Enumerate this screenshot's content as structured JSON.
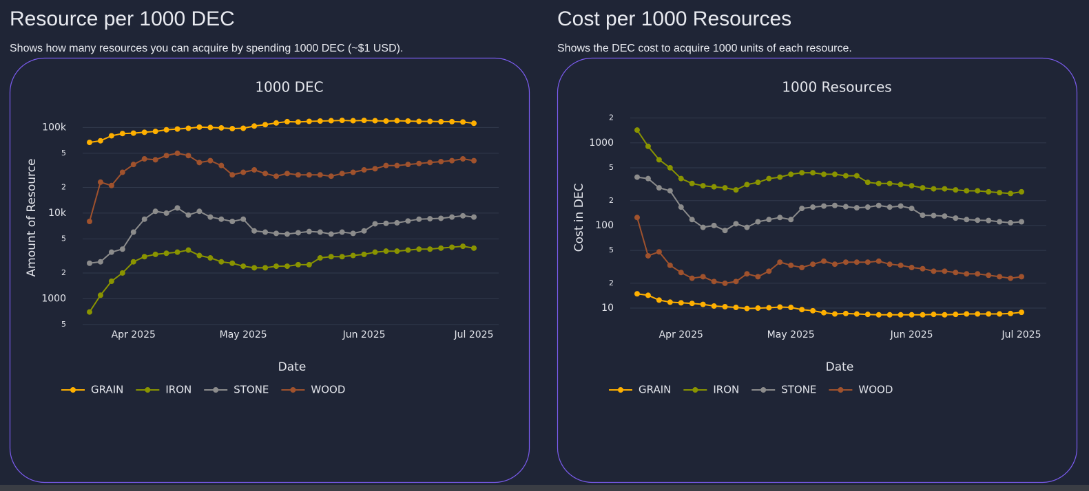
{
  "panels": [
    {
      "heading": "Resource per 1000 DEC",
      "description": "Shows how many resources you can acquire by spending 1000 DEC (~$1 USD)."
    },
    {
      "heading": "Cost per 1000 Resources",
      "description": "Shows the DEC cost to acquire 1000 units of each resource."
    }
  ],
  "chart_data": [
    {
      "type": "line",
      "title": "1000 DEC",
      "x_label": "Date",
      "y_label": "Amount of Resource",
      "log_y": true,
      "grid": true,
      "legend": "bottom-left",
      "categories": [
        null,
        null,
        null,
        null,
        "Apr 2025",
        null,
        null,
        null,
        null,
        null,
        null,
        null,
        null,
        null,
        "May 2025",
        null,
        null,
        null,
        null,
        null,
        null,
        null,
        null,
        null,
        null,
        "Jun 2025",
        null,
        null,
        null,
        null,
        null,
        null,
        null,
        null,
        null,
        "Jul 2025"
      ],
      "ylim": [
        490,
        160000
      ],
      "yticks": [
        {
          "value": 500,
          "label": "5"
        },
        1000,
        {
          "value": 2000,
          "label": "2"
        },
        {
          "value": 5000,
          "label": "5"
        },
        {
          "value": 10000,
          "label": "10k"
        },
        {
          "value": 20000,
          "label": "2"
        },
        {
          "value": 50000,
          "label": "5"
        },
        {
          "value": 100000,
          "label": "100k"
        }
      ],
      "series": [
        {
          "name": "GRAIN",
          "color": "#ffb000",
          "values": [
            67000,
            70000,
            80000,
            85000,
            86000,
            88000,
            90000,
            94000,
            96000,
            98000,
            101000,
            100000,
            99000,
            97000,
            98000,
            104000,
            108000,
            113000,
            117000,
            116000,
            118000,
            119000,
            120000,
            121000,
            120000,
            121000,
            120000,
            119000,
            120000,
            119000,
            118000,
            118000,
            117000,
            117000,
            116000,
            112000
          ]
        },
        {
          "name": "IRON",
          "color": "#8a9400",
          "values": [
            700,
            1100,
            1600,
            2000,
            2700,
            3100,
            3300,
            3400,
            3500,
            3700,
            3200,
            3000,
            2700,
            2600,
            2400,
            2300,
            2300,
            2400,
            2400,
            2500,
            2500,
            3000,
            3100,
            3100,
            3200,
            3300,
            3500,
            3600,
            3600,
            3700,
            3800,
            3800,
            3900,
            4000,
            4100,
            3900
          ]
        },
        {
          "name": "STONE",
          "color": "#8c8c8c",
          "values": [
            2600,
            2700,
            3500,
            3800,
            6000,
            8500,
            10500,
            10000,
            11500,
            9500,
            10500,
            9000,
            8500,
            8000,
            8500,
            6200,
            6000,
            5800,
            5700,
            5900,
            6100,
            6000,
            5700,
            6000,
            5800,
            6200,
            7500,
            7600,
            7700,
            8100,
            8500,
            8600,
            8700,
            9000,
            9300,
            9000
          ]
        },
        {
          "name": "WOOD",
          "color": "#a0522d",
          "values": [
            8000,
            23000,
            21000,
            30000,
            37000,
            43000,
            42000,
            47000,
            50000,
            47000,
            39000,
            41000,
            36000,
            28000,
            30000,
            32000,
            29000,
            27000,
            29000,
            28000,
            28000,
            28000,
            27000,
            29000,
            30000,
            32000,
            33000,
            36000,
            36000,
            37000,
            38000,
            39000,
            40000,
            41000,
            43000,
            41000
          ]
        }
      ]
    },
    {
      "type": "line",
      "title": "1000 Resources",
      "x_label": "Date",
      "y_label": "Cost in DEC",
      "log_y": true,
      "grid": true,
      "legend": "bottom-left",
      "categories": [
        null,
        null,
        null,
        null,
        "Apr 2025",
        null,
        null,
        null,
        null,
        null,
        null,
        null,
        null,
        null,
        "May 2025",
        null,
        null,
        null,
        null,
        null,
        null,
        null,
        null,
        null,
        null,
        "Jun 2025",
        null,
        null,
        null,
        null,
        null,
        null,
        null,
        null,
        null,
        "Jul 2025"
      ],
      "ylim": [
        6.2,
        2500
      ],
      "yticks": [
        10,
        {
          "value": 20,
          "label": "2"
        },
        {
          "value": 50,
          "label": "5"
        },
        100,
        {
          "value": 200,
          "label": "2"
        },
        {
          "value": 500,
          "label": "5"
        },
        1000,
        {
          "value": 2000,
          "label": "2"
        }
      ],
      "series": [
        {
          "name": "GRAIN",
          "color": "#ffb000",
          "values": [
            14.9,
            14.3,
            12.5,
            11.8,
            11.6,
            11.4,
            11.1,
            10.6,
            10.4,
            10.2,
            9.9,
            10,
            10.1,
            10.3,
            10.2,
            9.6,
            9.3,
            8.8,
            8.5,
            8.6,
            8.5,
            8.4,
            8.3,
            8.3,
            8.3,
            8.3,
            8.3,
            8.4,
            8.3,
            8.4,
            8.5,
            8.5,
            8.5,
            8.5,
            8.6,
            8.9
          ]
        },
        {
          "name": "IRON",
          "color": "#8a9400",
          "values": [
            1429,
            909,
            625,
            500,
            370,
            323,
            303,
            294,
            286,
            270,
            313,
            333,
            370,
            385,
            417,
            435,
            435,
            417,
            417,
            400,
            400,
            333,
            323,
            323,
            313,
            303,
            286,
            278,
            278,
            270,
            263,
            263,
            256,
            250,
            244,
            256
          ]
        },
        {
          "name": "STONE",
          "color": "#8c8c8c",
          "values": [
            385,
            370,
            286,
            263,
            167,
            118,
            95,
            100,
            87,
            105,
            95,
            111,
            118,
            125,
            118,
            161,
            167,
            172,
            175,
            169,
            164,
            167,
            175,
            167,
            172,
            161,
            133,
            132,
            130,
            123,
            118,
            116,
            115,
            111,
            108,
            111
          ]
        },
        {
          "name": "WOOD",
          "color": "#a0522d",
          "values": [
            125,
            43,
            48,
            33,
            27,
            23,
            24,
            21,
            20,
            21,
            26,
            24,
            28,
            36,
            33,
            31,
            34,
            37,
            34,
            36,
            36,
            36,
            37,
            34,
            33,
            31,
            30,
            28,
            28,
            27,
            26,
            26,
            25,
            24,
            23,
            24
          ]
        }
      ]
    }
  ]
}
